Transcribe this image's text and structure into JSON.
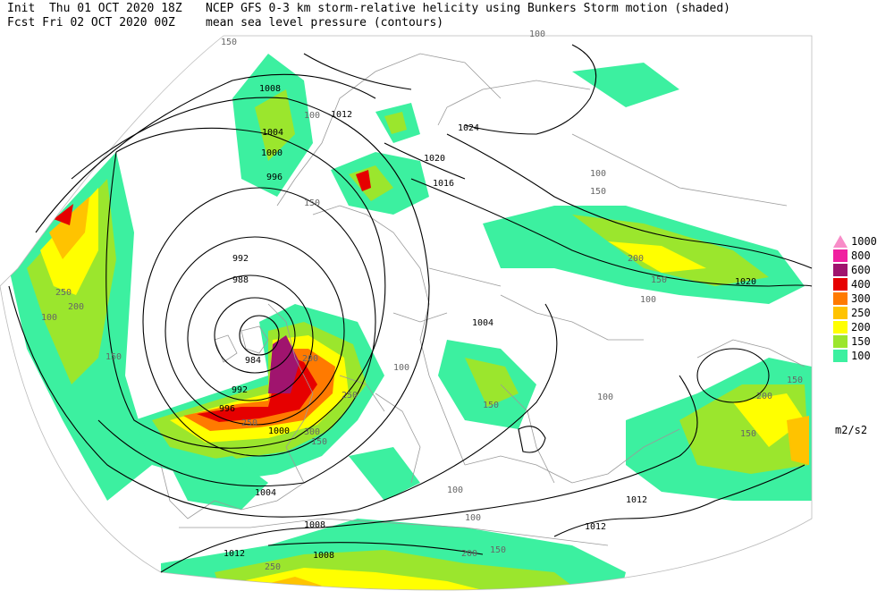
{
  "header": {
    "init_label": "Init",
    "init_time": "Thu 01 OCT 2020 18Z",
    "fcst_label": "Fcst",
    "fcst_time": "Fri 02 OCT 2020 00Z",
    "title_line1": "NCEP GFS 0-3 km storm-relative helicity using Bunkers Storm motion (shaded)",
    "title_line2": "mean sea level pressure (contours)"
  },
  "legend": {
    "units": "m2/s2",
    "items": [
      {
        "value": "1000",
        "color": "#f88cc8"
      },
      {
        "value": "800",
        "color": "#f020a0"
      },
      {
        "value": "600",
        "color": "#a0146e"
      },
      {
        "value": "400",
        "color": "#e60000"
      },
      {
        "value": "300",
        "color": "#ff7a00"
      },
      {
        "value": "250",
        "color": "#ffc300"
      },
      {
        "value": "200",
        "color": "#ffff00"
      },
      {
        "value": "150",
        "color": "#9be62d"
      },
      {
        "value": "100",
        "color": "#3cf0a0"
      }
    ]
  },
  "contour_labels": [
    "1008",
    "1012",
    "1004",
    "1000",
    "996",
    "992",
    "988",
    "984",
    "992",
    "996",
    "1000",
    "1004",
    "1008",
    "1012",
    "1024",
    "1020",
    "1016",
    "1004",
    "1020",
    "1012",
    "1012",
    "1008"
  ],
  "shade_labels": [
    "150",
    "100",
    "100",
    "150",
    "100",
    "150",
    "250",
    "200",
    "100",
    "150",
    "200",
    "250",
    "300",
    "250",
    "150",
    "100",
    "150",
    "200",
    "150",
    "100",
    "150",
    "200",
    "100",
    "150",
    "100",
    "100",
    "150",
    "200",
    "250"
  ],
  "colors": {
    "land_border": "#9a9a9a",
    "contour": "#000000"
  }
}
